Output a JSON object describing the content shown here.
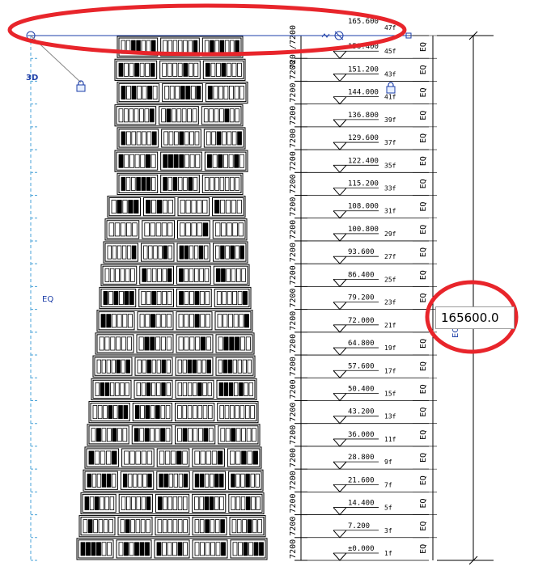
{
  "view": {
    "view_cube_label": "3D",
    "eq_label_left": "EQ",
    "dimension_input_value": "165600.0",
    "total_dimension_label": "165600.0",
    "top_partial_elevation": "165.600",
    "top_partial_elevation_2": "158.400",
    "accent_color": "#1e3fa8",
    "highlight_color": "#e8252b"
  },
  "levels": [
    {
      "name": "47f",
      "elevation": "165.600"
    },
    {
      "name": "45f",
      "elevation": "158.400"
    },
    {
      "name": "43f",
      "elevation": "151.200"
    },
    {
      "name": "41f",
      "elevation": "144.000"
    },
    {
      "name": "39f",
      "elevation": "136.800"
    },
    {
      "name": "37f",
      "elevation": "129.600"
    },
    {
      "name": "35f",
      "elevation": "122.400"
    },
    {
      "name": "33f",
      "elevation": "115.200"
    },
    {
      "name": "31f",
      "elevation": "108.000"
    },
    {
      "name": "29f",
      "elevation": "100.800"
    },
    {
      "name": "27f",
      "elevation": "93.600"
    },
    {
      "name": "25f",
      "elevation": "86.400"
    },
    {
      "name": "23f",
      "elevation": "79.200"
    },
    {
      "name": "21f",
      "elevation": "72.000"
    },
    {
      "name": "19f",
      "elevation": "64.800"
    },
    {
      "name": "17f",
      "elevation": "57.600"
    },
    {
      "name": "15f",
      "elevation": "50.400"
    },
    {
      "name": "13f",
      "elevation": "43.200"
    },
    {
      "name": "11f",
      "elevation": "36.000"
    },
    {
      "name": "9f",
      "elevation": "28.800"
    },
    {
      "name": "7f",
      "elevation": "21.600"
    },
    {
      "name": "5f",
      "elevation": "14.400"
    },
    {
      "name": "3f",
      "elevation": "7.200"
    },
    {
      "name": "1f",
      "elevation": "±0.000"
    }
  ],
  "floor_dimension": "7200",
  "floor_dimension_top_pair": "7200/7200",
  "eq_label": "EQ",
  "icons": [
    "lock-icon",
    "level-head-icon",
    "pin-icon"
  ]
}
